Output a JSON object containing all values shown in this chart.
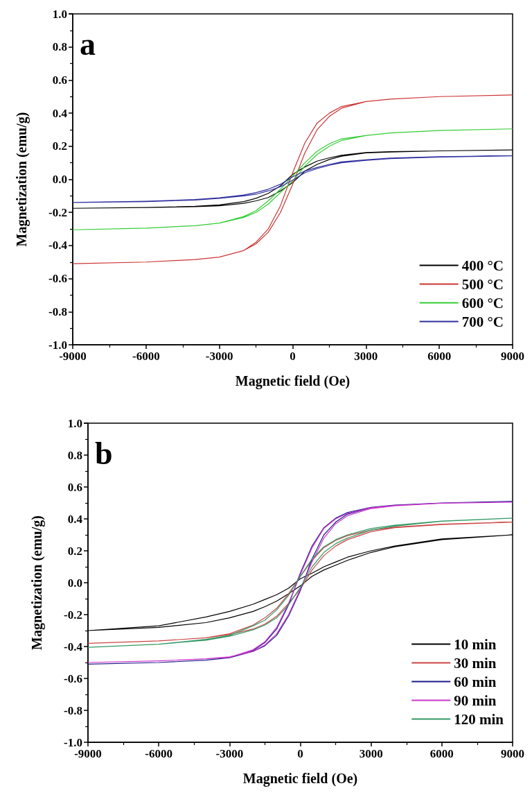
{
  "chart_data": [
    {
      "type": "line",
      "xlabel": "Magnetic field (Oe)",
      "ylabel": "Magnetization (emu/g)",
      "annotations": [
        "a"
      ],
      "xlim": [
        -9000,
        9000
      ],
      "xticks": [
        -9000,
        -6000,
        -3000,
        0,
        3000,
        6000,
        9000
      ],
      "ylim": [
        -1,
        1
      ],
      "yticks": [
        {
          "value": -1,
          "label": "-1.0"
        },
        {
          "value": -0.8,
          "label": "-0.8"
        },
        {
          "value": -0.6,
          "label": "-0.6"
        },
        {
          "value": -0.4,
          "label": "-0.4"
        },
        {
          "value": -0.2,
          "label": "-0.2"
        },
        {
          "value": 0,
          "label": "0.0"
        },
        {
          "value": 0.2,
          "label": "0.2"
        },
        {
          "value": 0.4,
          "label": "0.4"
        },
        {
          "value": 0.6,
          "label": "0.6"
        },
        {
          "value": 0.8,
          "label": "0.8"
        },
        {
          "value": 1,
          "label": "1.0"
        }
      ],
      "grid": false,
      "legend": "bottom right",
      "marker": "none",
      "line_style": "solid",
      "x": [
        -9000,
        -6000,
        -4000,
        -3000,
        -2000,
        -1500,
        -1000,
        -500,
        0,
        500,
        1000,
        1500,
        2000,
        3000,
        4000,
        6000,
        9000,
        null,
        -9000,
        -6000,
        -4000,
        -3000,
        -2000,
        -1500,
        -1000,
        -500,
        0,
        500,
        1000,
        1500,
        2000,
        3000,
        4000,
        6000,
        9000
      ],
      "series": [
        {
          "name": "400 °C",
          "color": "#000000",
          "values": [
            -0.175,
            -0.17,
            -0.165,
            -0.16,
            -0.145,
            -0.13,
            -0.11,
            -0.07,
            -0.02,
            0.05,
            0.09,
            0.12,
            0.14,
            0.16,
            0.165,
            0.172,
            0.178,
            null,
            -0.175,
            -0.17,
            -0.163,
            -0.155,
            -0.135,
            -0.115,
            -0.085,
            -0.04,
            0.03,
            0.075,
            0.11,
            0.13,
            0.145,
            0.162,
            0.167,
            0.172,
            0.178
          ]
        },
        {
          "name": "500 °C",
          "color": "#cc3333",
          "values": [
            -0.51,
            -0.5,
            -0.485,
            -0.47,
            -0.43,
            -0.39,
            -0.32,
            -0.2,
            -0.03,
            0.16,
            0.3,
            0.38,
            0.43,
            0.47,
            0.485,
            0.5,
            0.51,
            null,
            -0.51,
            -0.5,
            -0.485,
            -0.47,
            -0.43,
            -0.38,
            -0.3,
            -0.16,
            0.04,
            0.22,
            0.34,
            0.4,
            0.44,
            0.47,
            0.485,
            0.5,
            0.51
          ]
        },
        {
          "name": "600 °C",
          "color": "#33cc33",
          "values": [
            -0.305,
            -0.295,
            -0.28,
            -0.265,
            -0.23,
            -0.2,
            -0.15,
            -0.08,
            -0.01,
            0.08,
            0.15,
            0.2,
            0.235,
            0.265,
            0.28,
            0.295,
            0.305,
            null,
            -0.305,
            -0.295,
            -0.28,
            -0.265,
            -0.225,
            -0.19,
            -0.13,
            -0.06,
            0.02,
            0.1,
            0.17,
            0.215,
            0.245,
            0.265,
            0.28,
            0.295,
            0.305
          ]
        },
        {
          "name": "700 °C",
          "color": "#2f2f9f",
          "values": [
            -0.14,
            -0.135,
            -0.125,
            -0.115,
            -0.1,
            -0.09,
            -0.07,
            -0.045,
            -0.005,
            0.04,
            0.065,
            0.085,
            0.1,
            0.115,
            0.125,
            0.135,
            0.142,
            null,
            -0.14,
            -0.133,
            -0.122,
            -0.112,
            -0.095,
            -0.08,
            -0.06,
            -0.03,
            0.015,
            0.05,
            0.072,
            0.09,
            0.105,
            0.118,
            0.128,
            0.137,
            0.142
          ]
        }
      ]
    },
    {
      "type": "line",
      "xlabel": "Magnetic field (Oe)",
      "ylabel": "Magnetization (emu/g)",
      "annotations": [
        "b"
      ],
      "xlim": [
        -9000,
        9000
      ],
      "xticks": [
        -9000,
        -6000,
        -3000,
        0,
        3000,
        6000,
        9000
      ],
      "ylim": [
        -1,
        1
      ],
      "yticks": [
        {
          "value": -1,
          "label": "-1.0"
        },
        {
          "value": -0.8,
          "label": "-0.8"
        },
        {
          "value": -0.6,
          "label": "-0.6"
        },
        {
          "value": -0.4,
          "label": "-0.4"
        },
        {
          "value": -0.2,
          "label": "-0.2"
        },
        {
          "value": 0,
          "label": "0.0"
        },
        {
          "value": 0.2,
          "label": "0.2"
        },
        {
          "value": 0.4,
          "label": "0.4"
        },
        {
          "value": 0.6,
          "label": "0.6"
        },
        {
          "value": 0.8,
          "label": "0.8"
        },
        {
          "value": 1,
          "label": "1.0"
        }
      ],
      "grid": false,
      "legend": "bottom right",
      "marker": "none",
      "line_style": "solid",
      "x": [
        -9000,
        -6000,
        -4000,
        -3000,
        -2000,
        -1500,
        -1000,
        -500,
        0,
        500,
        1000,
        1500,
        2000,
        3000,
        4000,
        6000,
        9000,
        null,
        -9000,
        -6000,
        -4000,
        -3000,
        -2000,
        -1500,
        -1000,
        -500,
        0,
        500,
        1000,
        1500,
        2000,
        3000,
        4000,
        6000,
        9000
      ],
      "series": [
        {
          "name": "10 min",
          "color": "#000000",
          "values": [
            -0.3,
            -0.28,
            -0.25,
            -0.22,
            -0.18,
            -0.15,
            -0.115,
            -0.07,
            -0.02,
            0.04,
            0.08,
            0.11,
            0.14,
            0.19,
            0.225,
            0.27,
            0.3,
            null,
            -0.3,
            -0.27,
            -0.215,
            -0.18,
            -0.135,
            -0.105,
            -0.075,
            -0.035,
            0.025,
            0.06,
            0.1,
            0.13,
            0.16,
            0.2,
            0.23,
            0.275,
            0.3
          ]
        },
        {
          "name": "30 min",
          "color": "#cc4444",
          "values": [
            -0.38,
            -0.365,
            -0.345,
            -0.325,
            -0.29,
            -0.26,
            -0.21,
            -0.13,
            -0.04,
            0.08,
            0.17,
            0.23,
            0.27,
            0.32,
            0.345,
            0.365,
            0.38,
            null,
            -0.38,
            -0.365,
            -0.345,
            -0.32,
            -0.265,
            -0.22,
            -0.16,
            -0.07,
            0.04,
            0.14,
            0.22,
            0.265,
            0.295,
            0.33,
            0.348,
            0.367,
            0.38
          ]
        },
        {
          "name": "60 min",
          "color": "#1a1a8c",
          "values": [
            -0.51,
            -0.5,
            -0.485,
            -0.47,
            -0.43,
            -0.395,
            -0.33,
            -0.21,
            -0.05,
            0.15,
            0.3,
            0.38,
            0.43,
            0.47,
            0.485,
            0.5,
            0.51,
            null,
            -0.51,
            -0.5,
            -0.485,
            -0.47,
            -0.425,
            -0.375,
            -0.29,
            -0.14,
            0.06,
            0.23,
            0.345,
            0.405,
            0.44,
            0.472,
            0.487,
            0.5,
            0.51
          ]
        },
        {
          "name": "90 min",
          "color": "#cc33cc",
          "values": [
            -0.5,
            -0.49,
            -0.477,
            -0.465,
            -0.43,
            -0.39,
            -0.32,
            -0.2,
            -0.04,
            0.13,
            0.28,
            0.37,
            0.42,
            0.465,
            0.482,
            0.498,
            0.505,
            null,
            -0.5,
            -0.49,
            -0.477,
            -0.468,
            -0.42,
            -0.37,
            -0.28,
            -0.13,
            0.05,
            0.22,
            0.34,
            0.4,
            0.435,
            0.47,
            0.484,
            0.498,
            0.505
          ]
        },
        {
          "name": "120 min",
          "color": "#339966",
          "values": [
            -0.405,
            -0.385,
            -0.36,
            -0.335,
            -0.295,
            -0.265,
            -0.22,
            -0.14,
            -0.03,
            0.1,
            0.19,
            0.245,
            0.28,
            0.33,
            0.355,
            0.385,
            0.405,
            null,
            -0.405,
            -0.385,
            -0.355,
            -0.33,
            -0.27,
            -0.235,
            -0.17,
            -0.08,
            0.04,
            0.15,
            0.225,
            0.27,
            0.3,
            0.34,
            0.36,
            0.387,
            0.405
          ]
        }
      ]
    }
  ]
}
